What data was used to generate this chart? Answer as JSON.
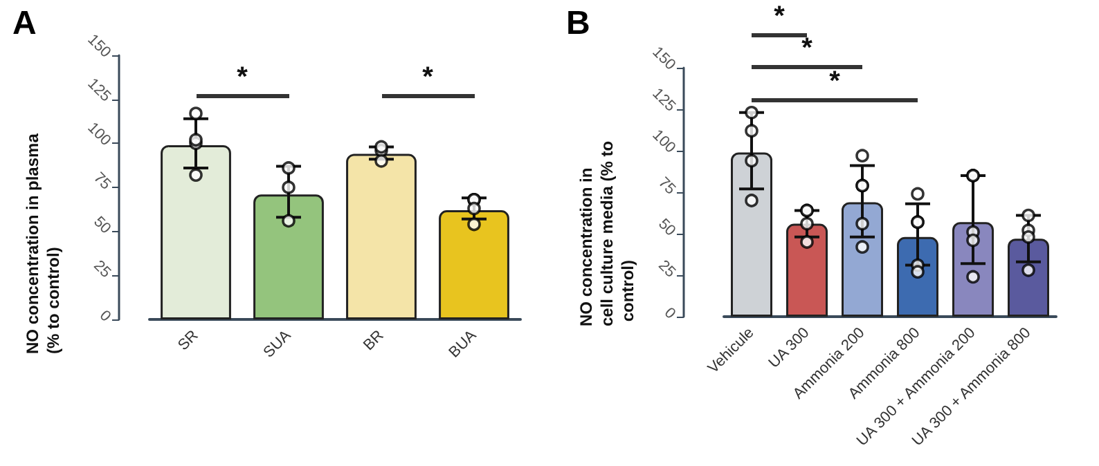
{
  "chart_data": [
    {
      "type": "bar",
      "title": "A",
      "ylabel": "NO concentration in plasma (% to control)",
      "categories": [
        "SR",
        "SUA",
        "BR",
        "BUA"
      ],
      "ylim": [
        0,
        150
      ],
      "yticks": [
        0,
        25,
        50,
        75,
        100,
        125,
        150
      ],
      "grid": false,
      "marker": "circle",
      "annotations": [
        "*",
        "*"
      ],
      "series": [
        {
          "colors": [
            "#e3ecd9",
            "#94c47d",
            "#f4e4a8",
            "#e8c41f"
          ],
          "values": [
            99,
            71,
            94,
            62
          ],
          "errors": [
            [
              86,
              114
            ],
            [
              58,
              87
            ],
            [
              91,
              98
            ],
            [
              57,
              69
            ]
          ]
        },
        {
          "type": "scatter",
          "color": "#000000",
          "x": [
            "SR",
            "SR",
            "SR",
            "SR",
            "SUA",
            "SUA",
            "SUA",
            "BR",
            "BR",
            "BR",
            "BUA",
            "BUA",
            "BUA",
            "BUA"
          ],
          "values": [
            117,
            100,
            102,
            82,
            86,
            75,
            56,
            96,
            98,
            90,
            68,
            68,
            63,
            54
          ]
        }
      ]
    },
    {
      "type": "bar",
      "title": "B",
      "ylabel": "NO concentration in cell culture media (% to control)",
      "categories": [
        "Vehicule",
        "UA 300",
        "Ammonia 200",
        "Ammonia 800",
        "UA 300 + Ammonia 200",
        "UA 300 + Ammonia 800"
      ],
      "ylim": [
        0,
        150
      ],
      "yticks": [
        0,
        25,
        50,
        75,
        100,
        125,
        150
      ],
      "grid": false,
      "marker": "circle",
      "annotations": [
        "*",
        "*",
        "*"
      ],
      "series": [
        {
          "colors": [
            "#ced2d6",
            "#c95755",
            "#93a8d3",
            "#3d6bb0",
            "#8987be",
            "#5a5a9e"
          ],
          "values": [
            99,
            56,
            69,
            48,
            57,
            47
          ],
          "errors": [
            [
              77,
              123
            ],
            [
              48,
              64
            ],
            [
              48,
              91
            ],
            [
              31,
              68
            ],
            [
              32,
              85
            ],
            [
              33,
              61
            ]
          ]
        },
        {
          "type": "scatter",
          "color": "#000000",
          "x": [
            "Vehicule",
            "Vehicule",
            "Vehicule",
            "Vehicule",
            "UA 300",
            "UA 300",
            "UA 300",
            "UA 300",
            "Ammonia 200",
            "Ammonia 200",
            "Ammonia 200",
            "Ammonia 200",
            "Ammonia 200",
            "Ammonia 800",
            "Ammonia 800",
            "Ammonia 800",
            "Ammonia 800",
            "Ammonia 800",
            "UA 300 + Ammonia 200",
            "UA 300 + Ammonia 200",
            "UA 300 + Ammonia 200",
            "UA 300 + Ammonia 200",
            "UA 300 + Ammonia 200",
            "UA 300 + Ammonia 800",
            "UA 300 + Ammonia 800",
            "UA 300 + Ammonia 800",
            "UA 300 + Ammonia 800"
          ],
          "values": [
            123,
            112,
            94,
            70,
            64,
            64,
            56,
            45,
            97,
            79,
            79,
            56,
            42,
            74,
            57,
            57,
            31,
            27,
            85,
            85,
            51,
            46,
            24,
            61,
            52,
            48,
            28
          ]
        }
      ]
    }
  ]
}
